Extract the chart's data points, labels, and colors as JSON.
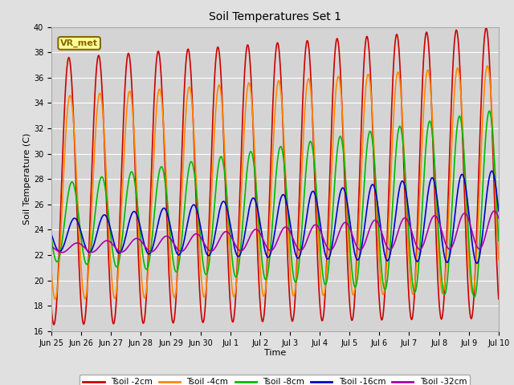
{
  "title": "Soil Temperatures Set 1",
  "xlabel": "Time",
  "ylabel": "Soil Temperature (C)",
  "ylim": [
    16,
    40
  ],
  "fig_bg_color": "#e0e0e0",
  "plot_bg_color": "#d4d4d4",
  "grid_color": "#ffffff",
  "annotation_text": "VR_met",
  "annotation_bg": "#ffff99",
  "annotation_border": "#886600",
  "series": [
    {
      "label": "Tsoil -2cm",
      "color": "#cc0000",
      "lw": 1.2
    },
    {
      "label": "Tsoil -4cm",
      "color": "#ff8800",
      "lw": 1.2
    },
    {
      "label": "Tsoil -8cm",
      "color": "#00bb00",
      "lw": 1.2
    },
    {
      "label": "Tsoil -16cm",
      "color": "#0000cc",
      "lw": 1.2
    },
    {
      "label": "Tsoil -32cm",
      "color": "#aa00aa",
      "lw": 1.2
    }
  ],
  "x_tick_labels": [
    "Jun 25",
    "Jun 26",
    "Jun 27",
    "Jun 28",
    "Jun 29",
    "Jun 30",
    "Jul 1",
    "Jul 2",
    "Jul 3",
    "Jul 4",
    "Jul 5",
    "Jul 6",
    "Jul 7",
    "Jul 8",
    "Jul 9",
    "Jul 10"
  ],
  "tick_fontsize": 7,
  "label_fontsize": 8,
  "title_fontsize": 10
}
